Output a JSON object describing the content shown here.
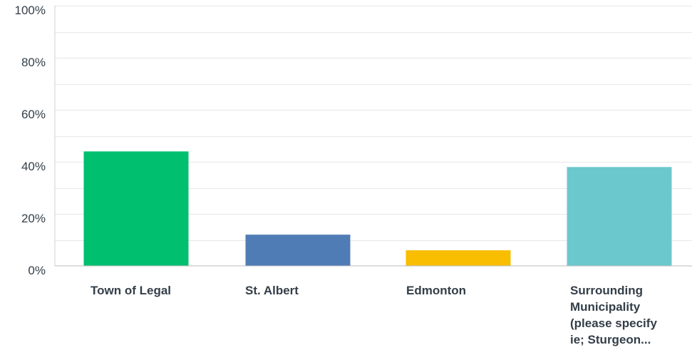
{
  "chart_data": {
    "type": "bar",
    "categories": [
      "Town of Legal",
      "St. Albert",
      "Edmonton",
      "Surrounding Municipality (please specify ie; Sturgeon..."
    ],
    "category_lines": [
      [
        "Town of Legal"
      ],
      [
        "St. Albert"
      ],
      [
        "Edmonton"
      ],
      [
        "Surrounding",
        "Municipality",
        "(please specify",
        "ie; Sturgeon..."
      ]
    ],
    "values": [
      44,
      12,
      6,
      38
    ],
    "colors": [
      "#00bf6f",
      "#507cb6",
      "#f9be00",
      "#6bc8cd"
    ],
    "ylim": [
      0,
      100
    ],
    "yticks": [
      0,
      20,
      40,
      60,
      80,
      100
    ],
    "ytick_labels": [
      "0%",
      "20%",
      "40%",
      "60%",
      "80%",
      "100%"
    ],
    "grid": true,
    "title": "",
    "xlabel": "",
    "ylabel": ""
  }
}
